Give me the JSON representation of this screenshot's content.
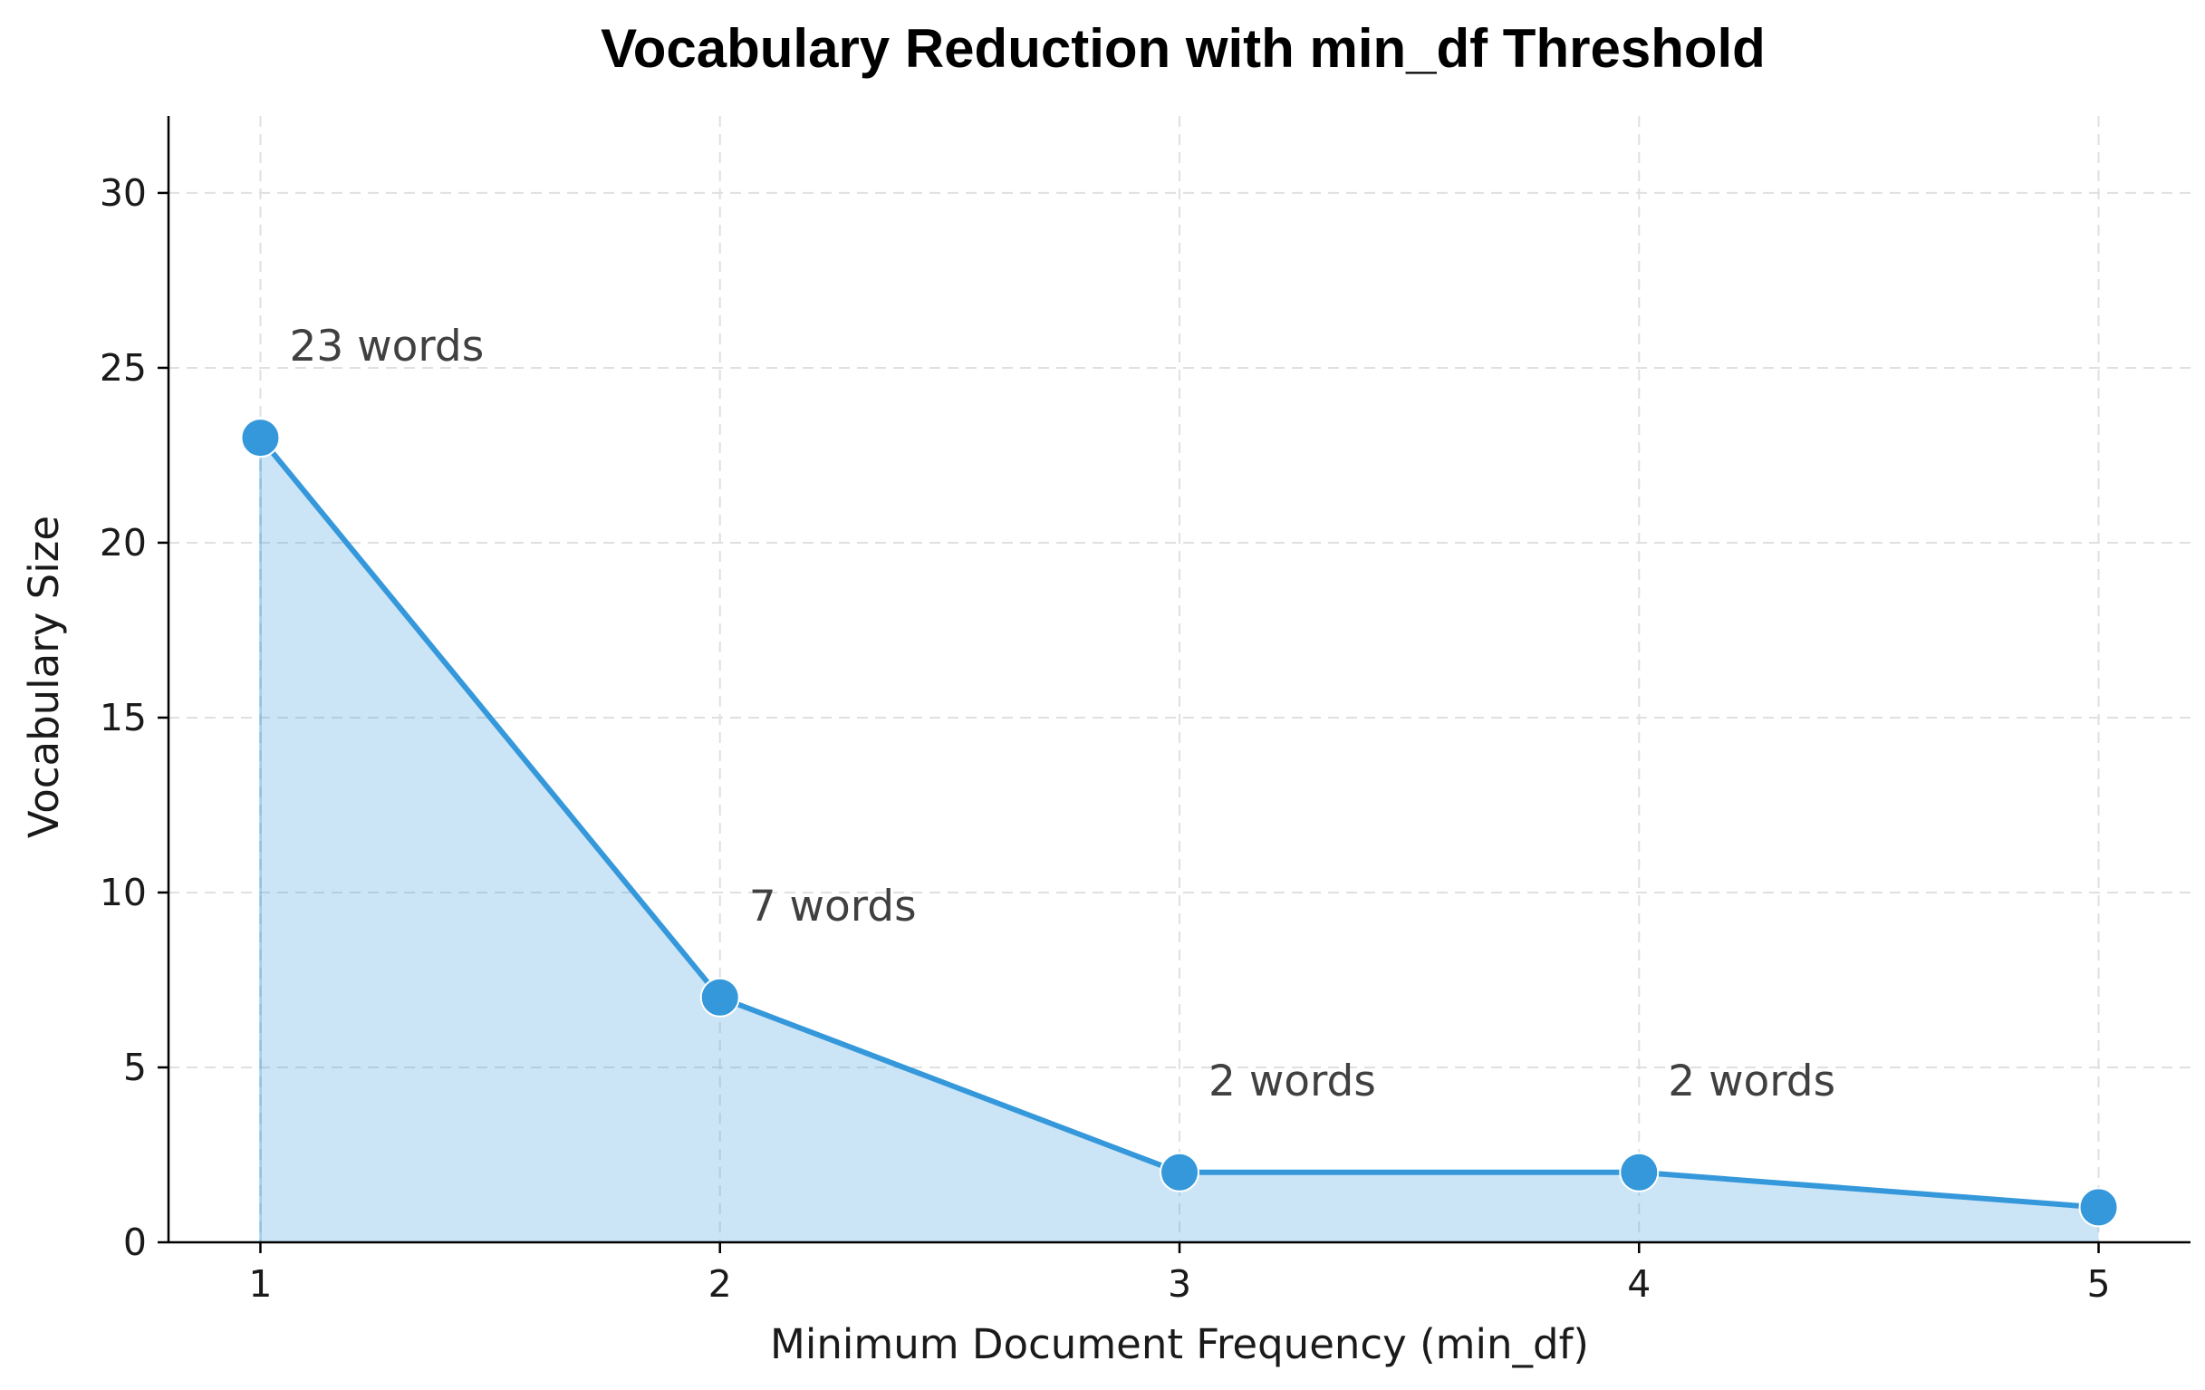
{
  "chart_data": {
    "type": "line",
    "title": "Vocabulary Reduction with min_df Threshold",
    "xlabel": "Minimum Document Frequency (min_df)",
    "ylabel": "Vocabulary Size",
    "x": [
      1,
      2,
      3,
      4,
      5
    ],
    "series": [
      {
        "values": [
          23,
          7,
          2,
          2,
          1
        ]
      }
    ],
    "xlim": [
      0.8,
      5.2
    ],
    "ylim": [
      0,
      32.2
    ],
    "xticks": [
      1,
      2,
      3,
      4,
      5
    ],
    "yticks": [
      0,
      5,
      10,
      15,
      20,
      25,
      30
    ],
    "annotations": [
      {
        "x": 1,
        "y": 23,
        "text": "23 words"
      },
      {
        "x": 2,
        "y": 7,
        "text": "7 words"
      },
      {
        "x": 3,
        "y": 2,
        "text": "2 words"
      },
      {
        "x": 4,
        "y": 2,
        "text": "2 words"
      }
    ],
    "grid": true,
    "filled_area": true,
    "markers": true,
    "colors": {
      "line": "#3498db",
      "fill": "#3498db",
      "fill_opacity": 0.25
    }
  }
}
